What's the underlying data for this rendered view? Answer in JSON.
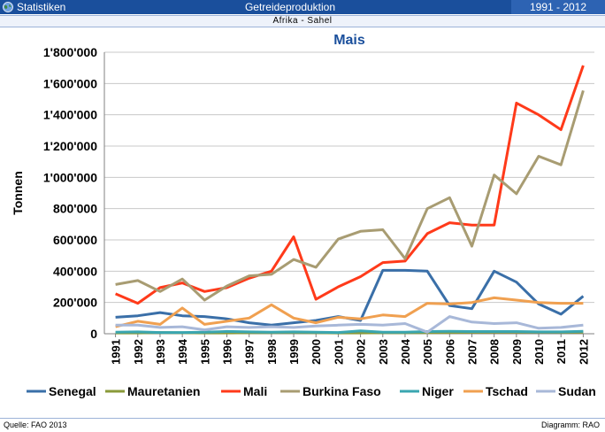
{
  "header": {
    "app_label": "Statistiken",
    "title": "Getreideproduktion",
    "period": "1991 - 2012",
    "region": "Afrika - Sahel"
  },
  "footer": {
    "source": "Quelle: FAO 2013",
    "credit": "Diagramm: RAO"
  },
  "colors": {
    "Senegal": "#3a6fa8",
    "Mauretanien": "#8a9a3a",
    "Mali": "#ff3a1a",
    "Burkina Faso": "#a89c72",
    "Niger": "#3aa6b0",
    "Tschad": "#f0a050",
    "Sudan": "#a8b8d8"
  },
  "chart_data": {
    "type": "line",
    "title": "Mais",
    "ylabel": "Tonnen",
    "ylim": [
      0,
      1800000
    ],
    "yticks": [
      "0",
      "200'000",
      "400'000",
      "600'000",
      "800'000",
      "1'000'000",
      "1'200'000",
      "1'400'000",
      "1'600'000",
      "1'800'000"
    ],
    "x": [
      "1991",
      "1992",
      "1993",
      "1994",
      "1995",
      "1996",
      "1997",
      "1998",
      "1999",
      "2000",
      "2001",
      "2002",
      "2003",
      "2004",
      "2005",
      "2006",
      "2007",
      "2008",
      "2009",
      "2010",
      "2011",
      "2012"
    ],
    "grid": true,
    "legend": "bottom",
    "series": [
      {
        "name": "Senegal",
        "values": [
          105000,
          115000,
          135000,
          115000,
          110000,
          95000,
          70000,
          55000,
          70000,
          85000,
          110000,
          85000,
          405000,
          405000,
          400000,
          180000,
          160000,
          400000,
          330000,
          190000,
          125000,
          240000
        ]
      },
      {
        "name": "Mauretanien",
        "values": [
          5000,
          5000,
          8000,
          6000,
          5000,
          5000,
          6000,
          7000,
          8000,
          6000,
          5000,
          5000,
          6000,
          6000,
          7000,
          8000,
          9000,
          10000,
          10000,
          10000,
          9000,
          10000
        ]
      },
      {
        "name": "Mali",
        "values": [
          255000,
          195000,
          295000,
          325000,
          270000,
          295000,
          355000,
          400000,
          620000,
          220000,
          300000,
          365000,
          455000,
          465000,
          640000,
          710000,
          695000,
          695000,
          1475000,
          1400000,
          1305000,
          1715000
        ]
      },
      {
        "name": "Burkina Faso",
        "values": [
          315000,
          340000,
          270000,
          350000,
          215000,
          305000,
          370000,
          380000,
          475000,
          425000,
          605000,
          655000,
          665000,
          480000,
          800000,
          870000,
          560000,
          1015000,
          895000,
          1135000,
          1080000,
          1555000
        ]
      },
      {
        "name": "Niger",
        "values": [
          10000,
          12000,
          8000,
          8000,
          10000,
          15000,
          12000,
          10000,
          12000,
          10000,
          8000,
          18000,
          10000,
          10000,
          14000,
          16000,
          14000,
          14000,
          14000,
          12000,
          12000,
          16000
        ]
      },
      {
        "name": "Tschad",
        "values": [
          45000,
          80000,
          60000,
          165000,
          60000,
          80000,
          100000,
          185000,
          100000,
          70000,
          105000,
          95000,
          120000,
          110000,
          195000,
          190000,
          200000,
          230000,
          215000,
          200000,
          195000,
          195000
        ]
      },
      {
        "name": "Sudan",
        "values": [
          55000,
          55000,
          40000,
          45000,
          25000,
          45000,
          40000,
          45000,
          40000,
          50000,
          55000,
          60000,
          55000,
          65000,
          10000,
          110000,
          75000,
          65000,
          70000,
          35000,
          40000,
          55000
        ]
      }
    ]
  }
}
